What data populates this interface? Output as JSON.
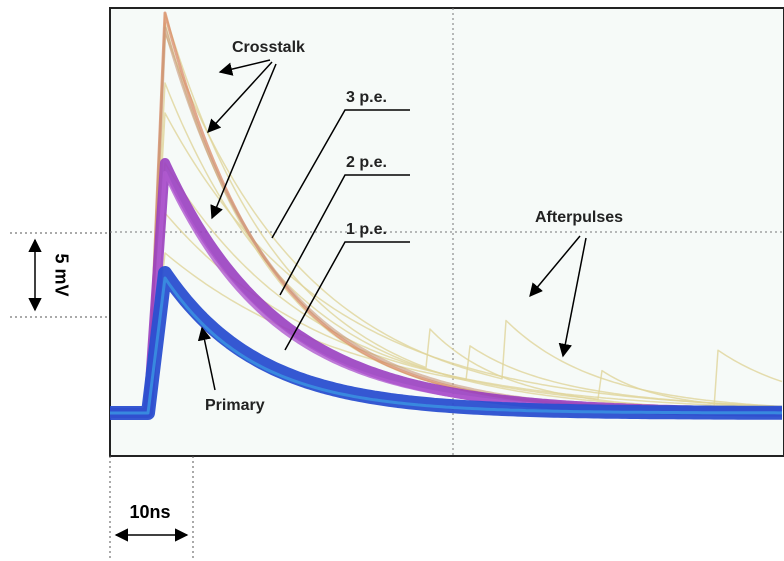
{
  "labels": {
    "crosstalk": "Crosstalk",
    "pe3": "3 p.e.",
    "pe2": "2 p.e.",
    "pe1": "1 p.e.",
    "afterpulses": "Afterpulses",
    "primary": "Primary"
  },
  "scale": {
    "voltage": "5 mV",
    "time": "10ns"
  }
}
